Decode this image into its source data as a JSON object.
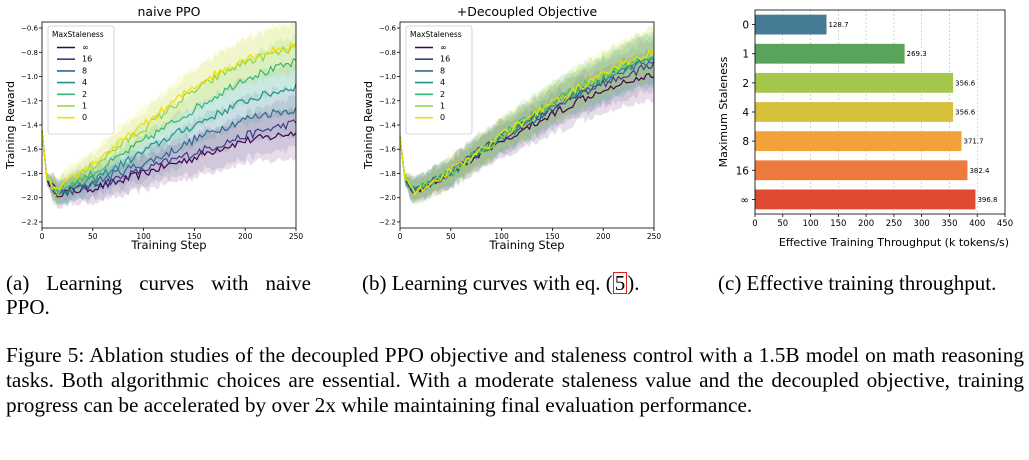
{
  "figure": {
    "label": "Figure 5:",
    "caption": "Ablation studies of the decoupled PPO objective and staleness control with a 1.5B model on math reasoning tasks. Both algorithmic choices are essential. With a moderate staleness value and the decoupled objective, training progress can be accelerated by over 2x while maintaining final evaluation performance."
  },
  "subcaptions": {
    "a": {
      "label": "(a) Learning curves with naive PPO."
    },
    "b": {
      "label_pre": "(b) Learning curves with eq. (",
      "ref": "5",
      "label_post": ")."
    },
    "c": {
      "label": "(c) Effective training throughput."
    }
  },
  "chart_data": [
    {
      "id": "a",
      "type": "line",
      "title": "naive PPO",
      "xlabel": "Training Step",
      "ylabel": "Training Reward",
      "xlim": [
        0,
        250
      ],
      "ylim": [
        -2.25,
        -0.55
      ],
      "xticks": [
        0,
        50,
        100,
        150,
        200,
        250
      ],
      "yticks": [
        -2.2,
        -2.0,
        -1.8,
        -1.6,
        -1.4,
        -1.2,
        -1.0,
        -0.8,
        -0.6
      ],
      "legend": {
        "title": "MaxStaleness",
        "position": "top-left"
      },
      "grid": false,
      "series": [
        {
          "name": "∞",
          "color": "#440154",
          "x": [
            0,
            5,
            15,
            25,
            50,
            75,
            100,
            125,
            150,
            175,
            200,
            225,
            250
          ],
          "y": [
            -1.45,
            -1.85,
            -1.96,
            -1.95,
            -1.92,
            -1.87,
            -1.8,
            -1.73,
            -1.67,
            -1.59,
            -1.53,
            -1.5,
            -1.46
          ]
        },
        {
          "name": "16",
          "color": "#443983",
          "x": [
            0,
            5,
            15,
            25,
            50,
            75,
            100,
            125,
            150,
            175,
            200,
            225,
            250
          ],
          "y": [
            -1.45,
            -1.85,
            -1.96,
            -1.95,
            -1.9,
            -1.84,
            -1.77,
            -1.7,
            -1.63,
            -1.56,
            -1.49,
            -1.43,
            -1.38
          ]
        },
        {
          "name": "8",
          "color": "#31688e",
          "x": [
            0,
            5,
            15,
            25,
            50,
            75,
            100,
            125,
            150,
            175,
            200,
            225,
            250
          ],
          "y": [
            -1.45,
            -1.85,
            -1.96,
            -1.94,
            -1.88,
            -1.79,
            -1.72,
            -1.63,
            -1.52,
            -1.43,
            -1.35,
            -1.3,
            -1.27
          ]
        },
        {
          "name": "4",
          "color": "#21918c",
          "x": [
            0,
            5,
            15,
            25,
            50,
            75,
            100,
            125,
            150,
            175,
            200,
            225,
            250
          ],
          "y": [
            -1.45,
            -1.85,
            -1.96,
            -1.93,
            -1.85,
            -1.74,
            -1.62,
            -1.5,
            -1.4,
            -1.3,
            -1.2,
            -1.14,
            -1.08
          ]
        },
        {
          "name": "2",
          "color": "#35b779",
          "x": [
            0,
            5,
            15,
            25,
            50,
            75,
            100,
            125,
            150,
            175,
            200,
            225,
            250
          ],
          "y": [
            -1.45,
            -1.85,
            -1.95,
            -1.9,
            -1.8,
            -1.67,
            -1.53,
            -1.4,
            -1.27,
            -1.14,
            -1.01,
            -0.95,
            -0.88
          ]
        },
        {
          "name": "1",
          "color": "#90d743",
          "x": [
            0,
            5,
            15,
            25,
            50,
            75,
            100,
            125,
            150,
            175,
            200,
            225,
            250
          ],
          "y": [
            -1.45,
            -1.85,
            -1.95,
            -1.88,
            -1.74,
            -1.58,
            -1.43,
            -1.27,
            -1.12,
            -0.99,
            -0.88,
            -0.82,
            -0.76
          ]
        },
        {
          "name": "0",
          "color": "#f0e000",
          "x": [
            0,
            5,
            15,
            25,
            50,
            75,
            100,
            125,
            150,
            175,
            200,
            225,
            250
          ],
          "y": [
            -1.45,
            -1.85,
            -1.95,
            -1.87,
            -1.72,
            -1.56,
            -1.4,
            -1.24,
            -1.08,
            -0.96,
            -0.85,
            -0.79,
            -0.74
          ]
        }
      ]
    },
    {
      "id": "b",
      "type": "line",
      "title": "+Decoupled Objective",
      "xlabel": "Training Step",
      "ylabel": "Training Reward",
      "xlim": [
        0,
        250
      ],
      "ylim": [
        -2.25,
        -0.55
      ],
      "xticks": [
        0,
        50,
        100,
        150,
        200,
        250
      ],
      "yticks": [
        -2.2,
        -2.0,
        -1.8,
        -1.6,
        -1.4,
        -1.2,
        -1.0,
        -0.8,
        -0.6
      ],
      "legend": {
        "title": "MaxStaleness",
        "position": "top-left"
      },
      "grid": false,
      "series": [
        {
          "name": "∞",
          "color": "#440154",
          "x": [
            0,
            5,
            15,
            25,
            50,
            75,
            100,
            125,
            150,
            175,
            200,
            225,
            250
          ],
          "y": [
            -1.5,
            -1.85,
            -1.95,
            -1.9,
            -1.8,
            -1.66,
            -1.55,
            -1.43,
            -1.31,
            -1.2,
            -1.1,
            -1.03,
            -0.98
          ]
        },
        {
          "name": "16",
          "color": "#443983",
          "x": [
            0,
            5,
            15,
            25,
            50,
            75,
            100,
            125,
            150,
            175,
            200,
            225,
            250
          ],
          "y": [
            -1.5,
            -1.85,
            -1.95,
            -1.9,
            -1.78,
            -1.62,
            -1.5,
            -1.38,
            -1.27,
            -1.16,
            -1.06,
            -0.98,
            -0.9
          ]
        },
        {
          "name": "8",
          "color": "#31688e",
          "x": [
            0,
            5,
            15,
            25,
            50,
            75,
            100,
            125,
            150,
            175,
            200,
            225,
            250
          ],
          "y": [
            -1.5,
            -1.85,
            -1.95,
            -1.9,
            -1.79,
            -1.64,
            -1.51,
            -1.38,
            -1.26,
            -1.15,
            -1.04,
            -0.94,
            -0.85
          ]
        },
        {
          "name": "4",
          "color": "#21918c",
          "x": [
            0,
            5,
            15,
            25,
            50,
            75,
            100,
            125,
            150,
            175,
            200,
            225,
            250
          ],
          "y": [
            -1.5,
            -1.85,
            -1.95,
            -1.9,
            -1.8,
            -1.65,
            -1.5,
            -1.37,
            -1.24,
            -1.12,
            -1.01,
            -0.92,
            -0.83
          ]
        },
        {
          "name": "2",
          "color": "#35b779",
          "x": [
            0,
            5,
            15,
            25,
            50,
            75,
            100,
            125,
            150,
            175,
            200,
            225,
            250
          ],
          "y": [
            -1.5,
            -1.85,
            -1.95,
            -1.9,
            -1.79,
            -1.63,
            -1.49,
            -1.35,
            -1.22,
            -1.1,
            -0.99,
            -0.9,
            -0.81
          ]
        },
        {
          "name": "1",
          "color": "#90d743",
          "x": [
            0,
            5,
            15,
            25,
            50,
            75,
            100,
            125,
            150,
            175,
            200,
            225,
            250
          ],
          "y": [
            -1.5,
            -1.85,
            -1.95,
            -1.9,
            -1.8,
            -1.65,
            -1.5,
            -1.36,
            -1.22,
            -1.1,
            -0.99,
            -0.89,
            -0.8
          ]
        },
        {
          "name": "0",
          "color": "#f0e000",
          "x": [
            0,
            5,
            15,
            25,
            50,
            75,
            100,
            125,
            150,
            175,
            200,
            225,
            250
          ],
          "y": [
            -1.5,
            -1.85,
            -1.95,
            -1.9,
            -1.78,
            -1.63,
            -1.49,
            -1.35,
            -1.22,
            -1.1,
            -0.98,
            -0.88,
            -0.8
          ]
        }
      ]
    },
    {
      "id": "c",
      "type": "bar",
      "orientation": "horizontal",
      "xlabel": "Effective Training Throughput (k tokens/s)",
      "ylabel": "Maximum Staleness",
      "xlim": [
        0,
        450
      ],
      "xticks": [
        0,
        50,
        100,
        150,
        200,
        250,
        300,
        350,
        400,
        450
      ],
      "grid": true,
      "categories": [
        "0",
        "1",
        "2",
        "4",
        "8",
        "16",
        "∞"
      ],
      "values": [
        128.7,
        269.3,
        356.6,
        356.6,
        371.7,
        382.4,
        396.8
      ],
      "value_labels": [
        "128.7",
        "269.3",
        "356.6",
        "356.6",
        "371.7",
        "382.4",
        "396.8"
      ],
      "colors": [
        "#457b95",
        "#5aa35a",
        "#a4c64a",
        "#d6c03a",
        "#f3a23a",
        "#ec7a3c",
        "#e04a30"
      ]
    }
  ]
}
